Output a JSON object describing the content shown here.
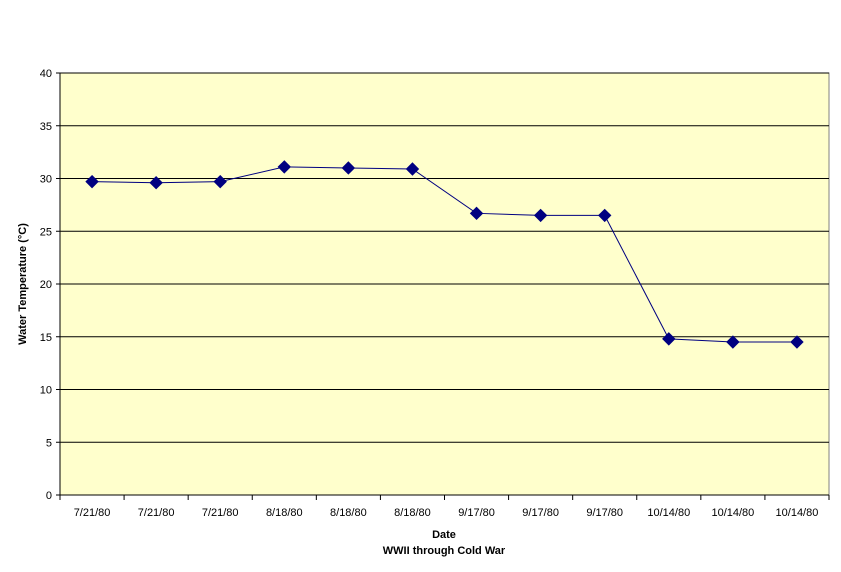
{
  "chart_data": {
    "type": "line",
    "title": "",
    "xlabel": "Date",
    "xlabel_sub": "WWII through Cold War",
    "ylabel": "Water Temperature (°C)",
    "ylim": [
      0,
      40
    ],
    "y_ticks": [
      0,
      5,
      10,
      15,
      20,
      25,
      30,
      35,
      40
    ],
    "grid": "horizontal",
    "legend": "none",
    "categories": [
      "7/21/80",
      "7/21/80",
      "7/21/80",
      "8/18/80",
      "8/18/80",
      "8/18/80",
      "9/17/80",
      "9/17/80",
      "9/17/80",
      "10/14/80",
      "10/14/80",
      "10/14/80"
    ],
    "series": [
      {
        "values": [
          29.7,
          29.6,
          29.7,
          31.1,
          31.0,
          30.9,
          26.7,
          26.5,
          26.5,
          14.8,
          14.5,
          14.5
        ]
      }
    ],
    "colors": {
      "plot_background": "#FFFFCC",
      "series_line": "#000080",
      "gridline": "#000000"
    },
    "marker": "diamond"
  }
}
